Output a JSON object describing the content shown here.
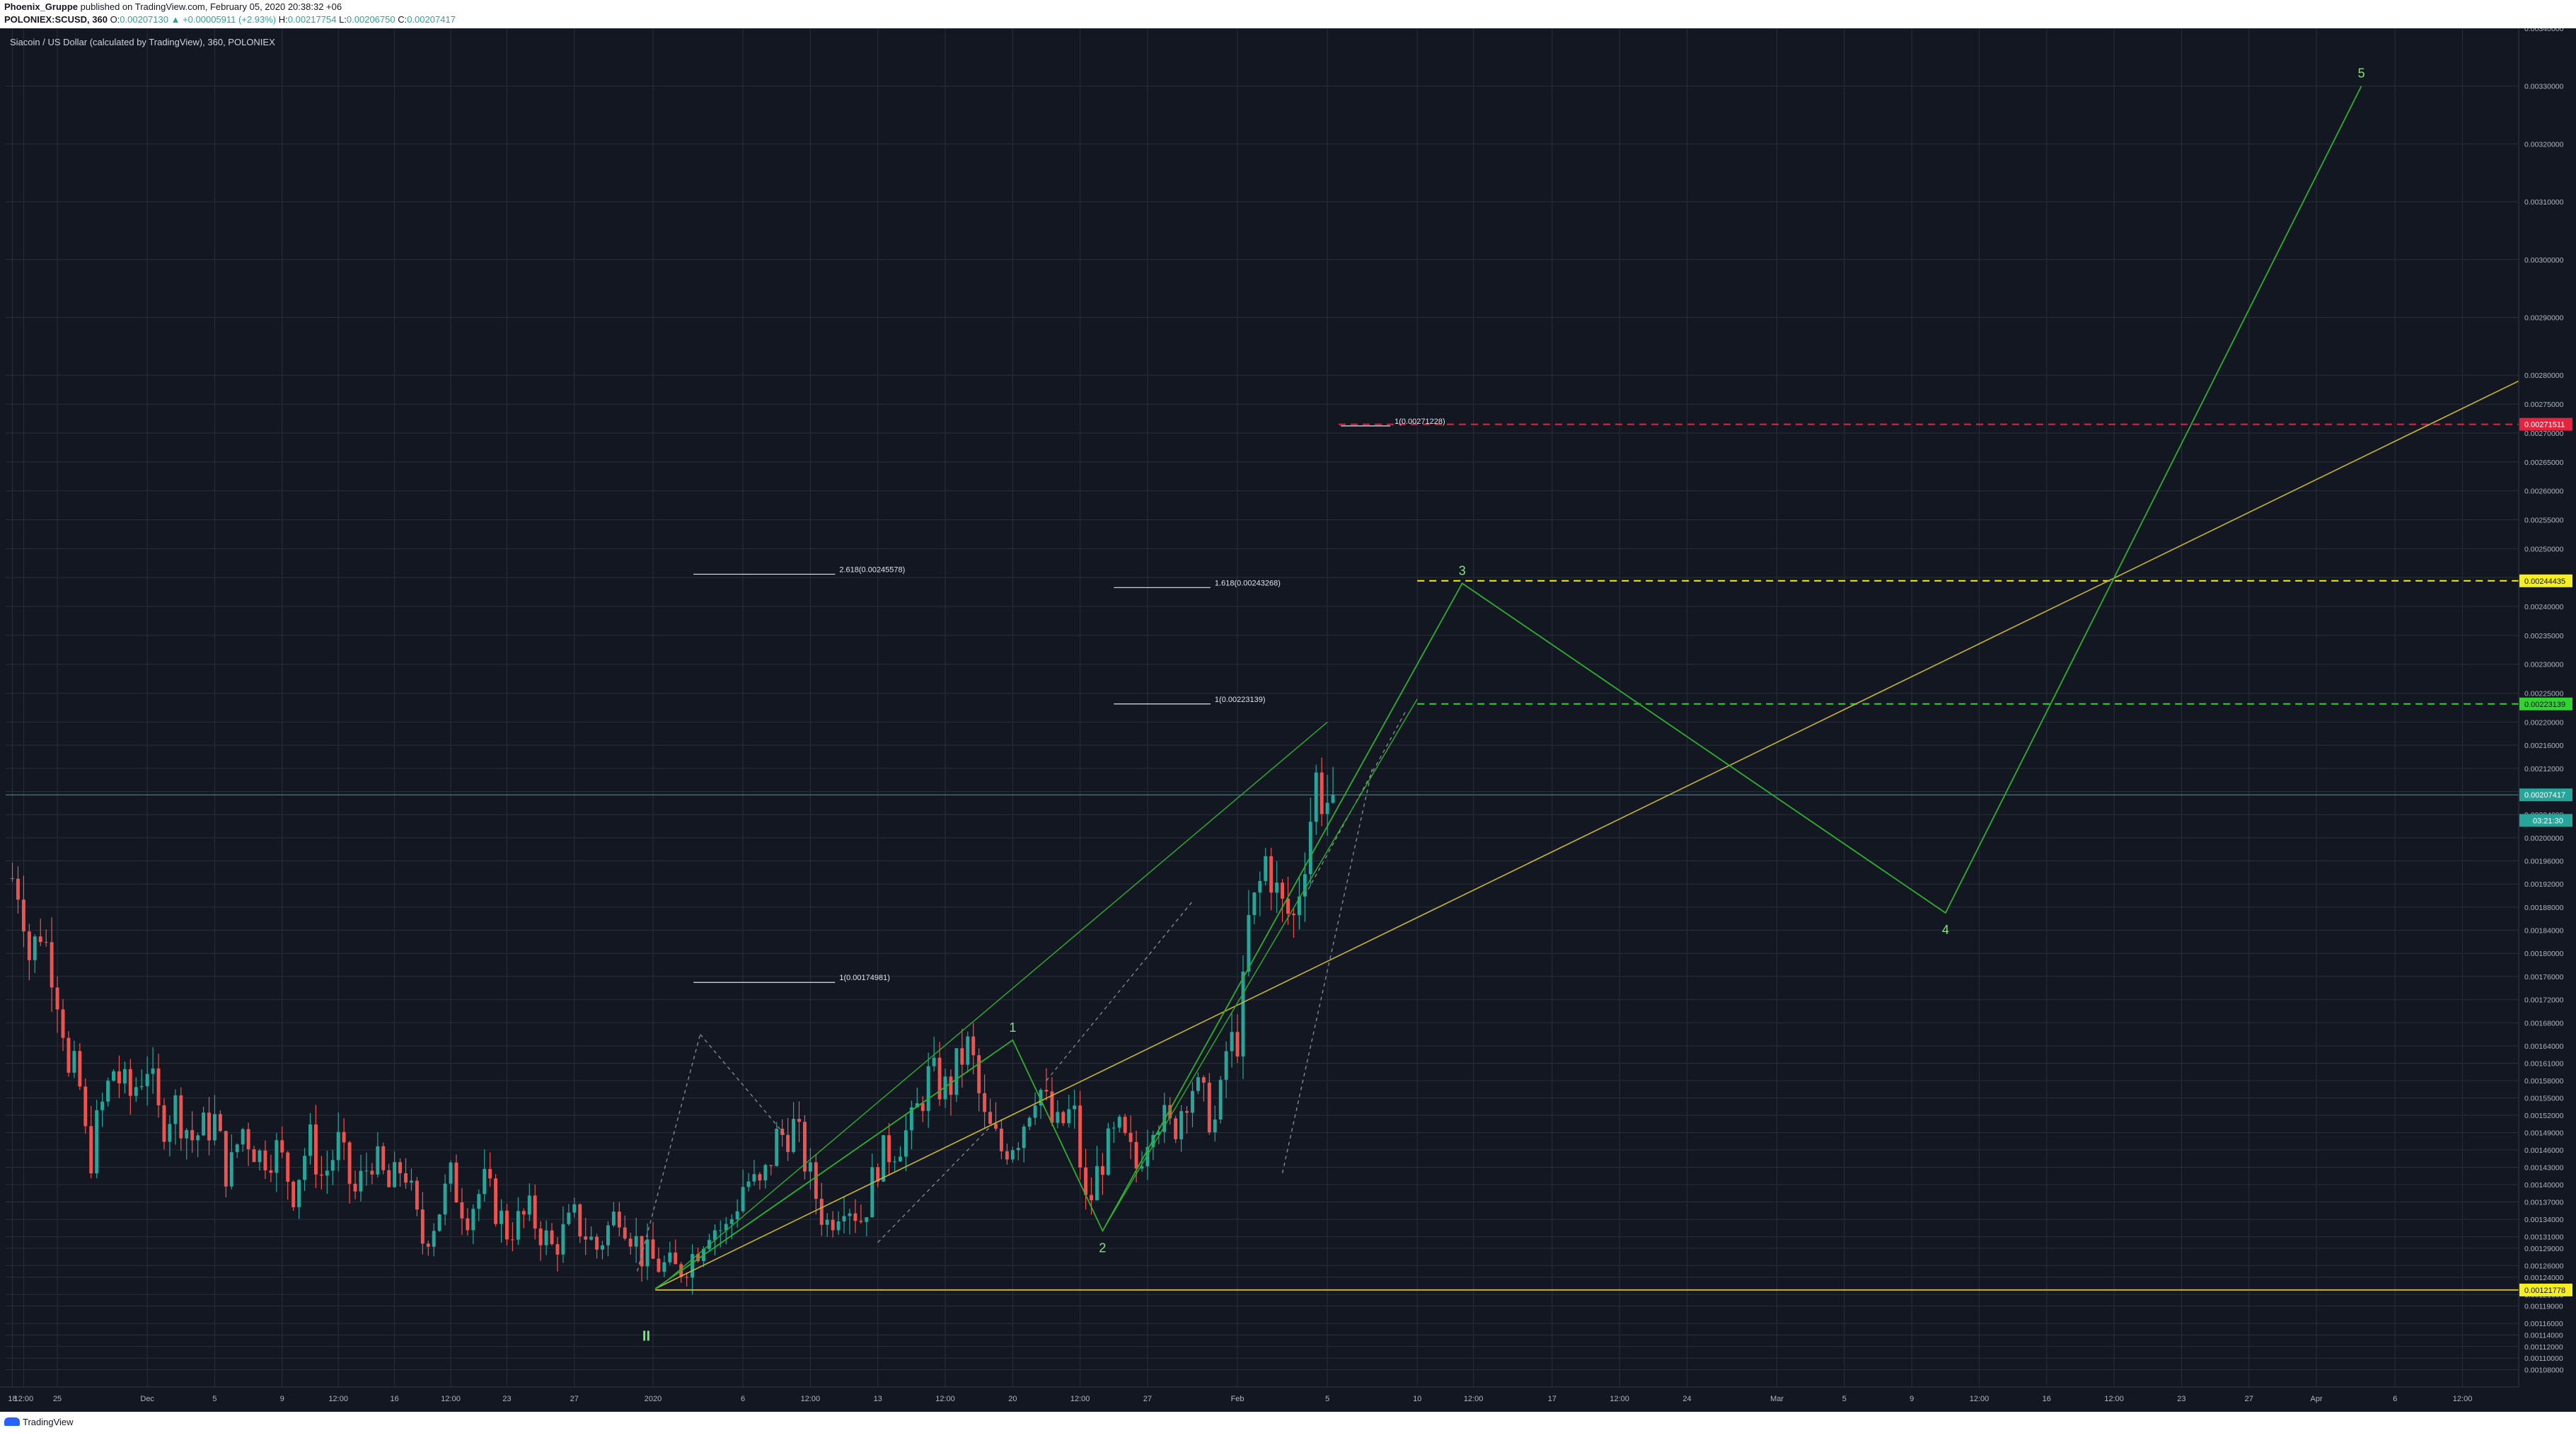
{
  "header": {
    "author": "Phoenix_Gruppe",
    "published": "published on TradingView.com, February 05, 2020 20:38:32 +06",
    "symbol": "POLONIEX:SCUSD, 360",
    "ohlc": [
      {
        "key": "O:",
        "value": "0.00207130"
      },
      {
        "key": "",
        "value": "▲ +0.00005911 (+2.93%)"
      },
      {
        "key": "H:",
        "value": "0.00217754"
      },
      {
        "key": "L:",
        "value": "0.00206750"
      },
      {
        "key": "C:",
        "value": "0.00207417"
      }
    ]
  },
  "footer": {
    "logo": "TradingView"
  },
  "colors": {
    "background": "#131722",
    "grid": "#2a2e39",
    "axis_text": "#b2b5be",
    "up": "#26a69a",
    "down": "#ef5350",
    "wave": "#2fae2f",
    "wave_label": "#7fe57f",
    "trend": "#c8b52e",
    "fib_red": "#e8213f",
    "fib_yellow": "#f5ee21",
    "fib_green": "#2fd42f"
  },
  "chart_data": {
    "type": "candlestick",
    "title": "Siacoin / US Dollar (calculated by TradingView), 360, POLONIEX",
    "x_axis": {
      "ticks": [
        {
          "day": -22,
          "label": "18"
        },
        {
          "day": -21.5,
          "label": "12:00"
        },
        {
          "day": -20,
          "label": "25"
        },
        {
          "day": -16,
          "label": "Dec"
        },
        {
          "day": -13,
          "label": "5"
        },
        {
          "day": -10,
          "label": "9"
        },
        {
          "day": -7.5,
          "label": "12:00"
        },
        {
          "day": -5,
          "label": "16"
        },
        {
          "day": -2.5,
          "label": "12:00"
        },
        {
          "day": 0,
          "label": "23"
        },
        {
          "day": 3,
          "label": "27"
        },
        {
          "day": 6.5,
          "label": "2020"
        },
        {
          "day": 10.5,
          "label": "6"
        },
        {
          "day": 13.5,
          "label": "12:00"
        },
        {
          "day": 16.5,
          "label": "13"
        },
        {
          "day": 19.5,
          "label": "12:00"
        },
        {
          "day": 22.5,
          "label": "20"
        },
        {
          "day": 25.5,
          "label": "12:00"
        },
        {
          "day": 28.5,
          "label": "27"
        },
        {
          "day": 32.5,
          "label": "Feb"
        },
        {
          "day": 36.5,
          "label": "5"
        },
        {
          "day": 40.5,
          "label": "10"
        },
        {
          "day": 43,
          "label": "12:00"
        },
        {
          "day": 46.5,
          "label": "17"
        },
        {
          "day": 49.5,
          "label": "12:00"
        },
        {
          "day": 52.5,
          "label": "24"
        },
        {
          "day": 56.5,
          "label": "Mar"
        },
        {
          "day": 59.5,
          "label": "5"
        },
        {
          "day": 62.5,
          "label": "9"
        },
        {
          "day": 65.5,
          "label": "12:00"
        },
        {
          "day": 68.5,
          "label": "16"
        },
        {
          "day": 71.5,
          "label": "12:00"
        },
        {
          "day": 74.5,
          "label": "23"
        },
        {
          "day": 77.5,
          "label": "27"
        },
        {
          "day": 80.5,
          "label": "Apr"
        },
        {
          "day": 84,
          "label": "6"
        },
        {
          "day": 87,
          "label": "12:00"
        }
      ],
      "range_days": [
        -22.3,
        89.5
      ]
    },
    "y_axis": {
      "range": [
        0.00105,
        0.0034
      ],
      "ticks": [
        "0.00108000",
        "0.00110000",
        "0.00112000",
        "0.00114000",
        "0.00116000",
        "0.00119000",
        "0.00121000",
        "0.00124000",
        "0.00126000",
        "0.00129000",
        "0.00131000",
        "0.00134000",
        "0.00137000",
        "0.00140000",
        "0.00143000",
        "0.00146000",
        "0.00149000",
        "0.00152000",
        "0.00155000",
        "0.00158000",
        "0.00161000",
        "0.00164000",
        "0.00168000",
        "0.00172000",
        "0.00176000",
        "0.00180000",
        "0.00184000",
        "0.00188000",
        "0.00192000",
        "0.00196000",
        "0.00200000",
        "0.00204000",
        "0.00208000",
        "0.00212000",
        "0.00216000",
        "0.00220000",
        "0.00225000",
        "0.00230000",
        "0.00235000",
        "0.00240000",
        "0.00245000",
        "0.00250000",
        "0.00255000",
        "0.00260000",
        "0.00265000",
        "0.00270000",
        "0.00275000",
        "0.00280000",
        "0.00290000",
        "0.00300000",
        "0.00310000",
        "0.00320000",
        "0.00330000",
        "0.00340000"
      ]
    },
    "candles": {
      "interval_days": 0.25,
      "first_day": -22,
      "price_path": [
        [
          -22,
          0.00193
        ],
        [
          -21.6,
          0.00191
        ],
        [
          -21.2,
          0.00178
        ],
        [
          -20.8,
          0.00185
        ],
        [
          -20.3,
          0.00179
        ],
        [
          -19.8,
          0.0017
        ],
        [
          -19.5,
          0.00158
        ],
        [
          -19.1,
          0.0016
        ],
        [
          -18.6,
          0.00143
        ],
        [
          -18.2,
          0.00151
        ],
        [
          -17.5,
          0.0016
        ],
        [
          -16.8,
          0.00155
        ],
        [
          -16.0,
          0.00161
        ],
        [
          -15.4,
          0.0015
        ],
        [
          -14.8,
          0.00154
        ],
        [
          -14.0,
          0.00148
        ],
        [
          -13.0,
          0.00151
        ],
        [
          -12.4,
          0.00141
        ],
        [
          -11.8,
          0.0015
        ],
        [
          -11.0,
          0.00145
        ],
        [
          -10.2,
          0.00146
        ],
        [
          -9.5,
          0.00139
        ],
        [
          -8.8,
          0.00148
        ],
        [
          -8.2,
          0.00141
        ],
        [
          -7.5,
          0.00147
        ],
        [
          -6.8,
          0.00138
        ],
        [
          -6.0,
          0.00145
        ],
        [
          -5.2,
          0.00139
        ],
        [
          -4.6,
          0.00144
        ],
        [
          -3.8,
          0.0013
        ],
        [
          -3.2,
          0.00134
        ],
        [
          -2.5,
          0.00141
        ],
        [
          -1.8,
          0.00135
        ],
        [
          -1.0,
          0.0014
        ],
        [
          0.0,
          0.00132
        ],
        [
          1.0,
          0.00135
        ],
        [
          2.0,
          0.00129
        ],
        [
          3.0,
          0.00134
        ],
        [
          4.0,
          0.00129
        ],
        [
          5.0,
          0.00136
        ],
        [
          6.0,
          0.00128
        ],
        [
          6.8,
          0.00126
        ],
        [
          7.6,
          0.00125
        ],
        [
          8.3,
          0.00128
        ],
        [
          9.0,
          0.00133
        ],
        [
          9.8,
          0.00132
        ],
        [
          10.6,
          0.00141
        ],
        [
          11.3,
          0.00139
        ],
        [
          12.0,
          0.00148
        ],
        [
          12.8,
          0.0015
        ],
        [
          13.5,
          0.00141
        ],
        [
          14.2,
          0.00133
        ],
        [
          15.0,
          0.00138
        ],
        [
          15.8,
          0.00134
        ],
        [
          16.5,
          0.00144
        ],
        [
          17.3,
          0.00147
        ],
        [
          18.0,
          0.0015
        ],
        [
          18.8,
          0.00159
        ],
        [
          19.6,
          0.00156
        ],
        [
          20.2,
          0.00162
        ],
        [
          20.6,
          0.00164
        ],
        [
          21.2,
          0.00151
        ],
        [
          22.0,
          0.00146
        ],
        [
          22.8,
          0.00149
        ],
        [
          23.6,
          0.00158
        ],
        [
          24.4,
          0.00149
        ],
        [
          25.2,
          0.00153
        ],
        [
          25.8,
          0.00135
        ],
        [
          26.4,
          0.00144
        ],
        [
          27.2,
          0.00149
        ],
        [
          28.0,
          0.00143
        ],
        [
          28.8,
          0.00153
        ],
        [
          29.6,
          0.00149
        ],
        [
          30.4,
          0.00158
        ],
        [
          31.0,
          0.00154
        ],
        [
          31.6,
          0.0015
        ],
        [
          32.0,
          0.00163
        ],
        [
          32.6,
          0.00166
        ],
        [
          33.0,
          0.00185
        ],
        [
          33.4,
          0.0019
        ],
        [
          33.8,
          0.00197
        ],
        [
          34.4,
          0.00188
        ],
        [
          35.0,
          0.00186
        ],
        [
          35.6,
          0.002
        ],
        [
          36.0,
          0.0021
        ],
        [
          36.4,
          0.00206
        ],
        [
          36.8,
          0.00207417
        ]
      ]
    },
    "price_labels": [
      {
        "value": 0.00271511,
        "text": "0.00271511",
        "color": "#e8213f",
        "text_color": "#ffffff"
      },
      {
        "value": 0.00244435,
        "text": "0.00244435",
        "color": "#f5ee21",
        "text_color": "#131722"
      },
      {
        "value": 0.00223139,
        "text": "0.00223139",
        "color": "#2fd42f",
        "text_color": "#131722"
      },
      {
        "value": 0.00207417,
        "text": "0.00207417",
        "color": "#26a69a",
        "text_color": "#ffffff"
      },
      {
        "value": 0.00121778,
        "text": "0.00121778",
        "color": "#f5ee21",
        "text_color": "#131722"
      }
    ],
    "countdown": {
      "value": 0.00203,
      "text": "03:21:30"
    },
    "horizontal_levels": [
      {
        "value": 0.00271511,
        "from_day": 37.0,
        "color": "#e8213f",
        "style": "dashed"
      },
      {
        "value": 0.00244435,
        "from_day": 40.5,
        "color": "#f5ee21",
        "style": "dashed"
      },
      {
        "value": 0.00223139,
        "from_day": 40.5,
        "color": "#2fd42f",
        "style": "dashed"
      },
      {
        "value": 0.00121778,
        "from_day": 6.6,
        "color": "#c8b52e",
        "style": "solid"
      },
      {
        "value": 0.00207417,
        "from_day": -22.3,
        "color": "#26a69a",
        "style": "thin"
      }
    ],
    "fib_labels": [
      {
        "text": "1(0.00271228)",
        "value": 0.00271228,
        "from_day": 37.1,
        "to_day": 39.3
      },
      {
        "text": "2.618(0.00245578)",
        "value": 0.00245578,
        "from_day": 8.3,
        "to_day": 14.6
      },
      {
        "text": "1.618(0.00243268)",
        "value": 0.00243268,
        "from_day": 27.0,
        "to_day": 31.3
      },
      {
        "text": "1(0.00223139)",
        "value": 0.00223139,
        "from_day": 27.0,
        "to_day": 31.3
      },
      {
        "text": "1(0.00174981)",
        "value": 0.00174981,
        "from_day": 8.3,
        "to_day": 14.6
      }
    ],
    "wave_points": [
      {
        "label": "",
        "day": 6.6,
        "value": 0.00122
      },
      {
        "label": "1",
        "day": 22.5,
        "value": 0.00165
      },
      {
        "label": "2",
        "day": 26.5,
        "value": 0.00132
      },
      {
        "label": "3",
        "day": 42.5,
        "value": 0.00244
      },
      {
        "label": "4",
        "day": 64.0,
        "value": 0.00187
      },
      {
        "label": "5",
        "day": 82.5,
        "value": 0.0033
      }
    ],
    "wave_channel": [
      {
        "from": [
          6.6,
          0.00122
        ],
        "to": [
          22.5,
          0.00165
        ]
      },
      {
        "from": [
          26.5,
          0.00132
        ],
        "to": [
          40.5,
          0.00224
        ]
      },
      {
        "from": [
          7.0,
          0.00123
        ],
        "to": [
          36.5,
          0.0022
        ]
      }
    ],
    "wave_II_label": {
      "text": "II",
      "day": 6.2,
      "value": 0.00113
    },
    "trend_line": {
      "from": [
        6.6,
        0.00122
      ],
      "to": [
        89.5,
        0.00279
      ]
    },
    "projection_dashes": [
      {
        "from": [
          5.8,
          0.00125
        ],
        "to": [
          8.6,
          0.00166
        ]
      },
      {
        "from": [
          8.6,
          0.00166
        ],
        "to": [
          12.5,
          0.00148
        ]
      },
      {
        "from": [
          16.5,
          0.0013
        ],
        "to": [
          21.5,
          0.0015
        ]
      },
      {
        "from": [
          24.0,
          0.00158
        ],
        "to": [
          30.5,
          0.00189
        ]
      },
      {
        "from": [
          34.5,
          0.00142
        ],
        "to": [
          38.5,
          0.00212
        ]
      },
      {
        "from": [
          35.5,
          0.0019
        ],
        "to": [
          40.0,
          0.00222
        ]
      }
    ]
  }
}
